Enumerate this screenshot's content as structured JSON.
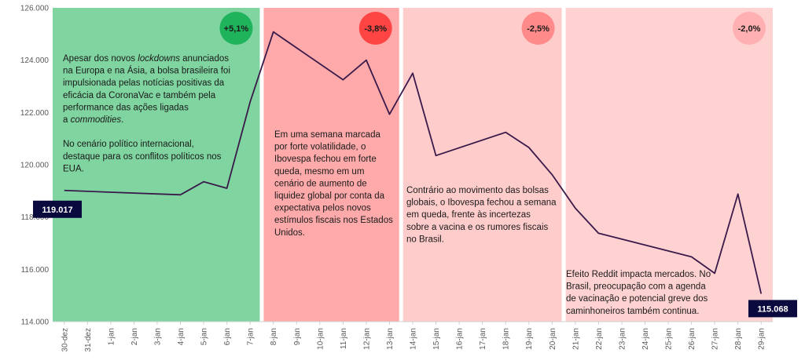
{
  "chart_data": {
    "type": "line",
    "title": "",
    "xlabel": "",
    "ylabel": "",
    "ylim": [
      114000,
      126000
    ],
    "yticks": [
      "114.000",
      "116.000",
      "118.000",
      "120.000",
      "122.000",
      "124.000",
      "126.000"
    ],
    "ytick_values": [
      114000,
      116000,
      118000,
      120000,
      122000,
      124000,
      126000
    ],
    "categories": [
      "30-dez",
      "31-dez",
      "1-jan",
      "2-jan",
      "3-jan",
      "4-jan",
      "5-jan",
      "6-jan",
      "7-jan",
      "8-jan",
      "9-jan",
      "10-jan",
      "11-jan",
      "12-jan",
      "13-jan",
      "14-jan",
      "15-jan",
      "16-jan",
      "17-jan",
      "18-jan",
      "19-jan",
      "20-jan",
      "21-jan",
      "22-jan",
      "23-jan",
      "24-jan",
      "25-jan",
      "26-jan",
      "27-jan",
      "28-jan",
      "29-jan"
    ],
    "series": [
      {
        "name": "Ibovespa",
        "color": "#3a1a4a",
        "points": [
          {
            "x": 0,
            "y": 119017
          },
          {
            "x": 5,
            "y": 118850
          },
          {
            "x": 6,
            "y": 119350
          },
          {
            "x": 7,
            "y": 119100
          },
          {
            "x": 8,
            "y": 122400
          },
          {
            "x": 9,
            "y": 125080
          },
          {
            "x": 12,
            "y": 123250
          },
          {
            "x": 13,
            "y": 124000
          },
          {
            "x": 14,
            "y": 121930
          },
          {
            "x": 15,
            "y": 123500
          },
          {
            "x": 16,
            "y": 120350
          },
          {
            "x": 19,
            "y": 121240
          },
          {
            "x": 20,
            "y": 120660
          },
          {
            "x": 21,
            "y": 119620
          },
          {
            "x": 22,
            "y": 118340
          },
          {
            "x": 23,
            "y": 117380
          },
          {
            "x": 27,
            "y": 116480
          },
          {
            "x": 28,
            "y": 115850
          },
          {
            "x": 29,
            "y": 118880
          },
          {
            "x": 30,
            "y": 115068
          }
        ]
      }
    ],
    "regions": [
      {
        "name": "week-1",
        "x_from": 0,
        "x_to": 8.5,
        "color": "#7fd4a0",
        "badge": "+5,1%",
        "badge_color": "#1fb35c",
        "text": [
          [
            {
              "t": "Apesar dos novos "
            },
            {
              "t": "lockdowns",
              "i": true
            },
            {
              "t": " anunciados"
            }
          ],
          [
            {
              "t": "na Europa e na Ásia, a bolsa brasileira foi"
            }
          ],
          [
            {
              "t": "impulsionada pelas notícias positivas da"
            }
          ],
          [
            {
              "t": "eficácia da CoronaVac e também pela"
            }
          ],
          [
            {
              "t": "performance das ações ligadas"
            }
          ],
          [
            {
              "t": "a "
            },
            {
              "t": "commodities",
              "i": true
            },
            {
              "t": "."
            }
          ],
          [
            {
              "t": ""
            }
          ],
          [
            {
              "t": "No cenário político internacional,"
            }
          ],
          [
            {
              "t": "destaque para os conflitos políticos nos"
            }
          ],
          [
            {
              "t": "EUA."
            }
          ]
        ]
      },
      {
        "name": "week-2",
        "x_from": 8.5,
        "x_to": 14.5,
        "color": "#ffaaaa",
        "badge": "-3,8%",
        "badge_color": "#ff4444",
        "text": [
          [
            {
              "t": "Em uma semana marcada"
            }
          ],
          [
            {
              "t": "por forte volatilidade, o"
            }
          ],
          [
            {
              "t": "Ibovespa fechou em forte"
            }
          ],
          [
            {
              "t": "queda, mesmo em um"
            }
          ],
          [
            {
              "t": "cenário de aumento de"
            }
          ],
          [
            {
              "t": "liquidez global por conta da"
            }
          ],
          [
            {
              "t": "expectativa pelos novos"
            }
          ],
          [
            {
              "t": "estímulos fiscais nos Estados"
            }
          ],
          [
            {
              "t": "Unidos."
            }
          ]
        ]
      },
      {
        "name": "week-3",
        "x_from": 14.5,
        "x_to": 21.5,
        "color": "#ffcccc",
        "badge": "-2,5%",
        "badge_color": "#ff8a8a",
        "text": [
          [
            {
              "t": "Contrário ao movimento das bolsas"
            }
          ],
          [
            {
              "t": "globais, o Ibovespa fechou a semana"
            }
          ],
          [
            {
              "t": "em queda, frente às incertezas"
            }
          ],
          [
            {
              "t": "sobre a vacina e os rumores fiscais"
            }
          ],
          [
            {
              "t": "no Brasil."
            }
          ]
        ]
      },
      {
        "name": "week-4",
        "x_from": 21.5,
        "x_to": 30.0,
        "color": "#ffd2d2",
        "badge": "-2,0%",
        "badge_color": "#ffb0b0",
        "text": [
          [
            {
              "t": "Efeito Reddit impacta mercados. No"
            }
          ],
          [
            {
              "t": "Brasil, preocupação com a agenda"
            }
          ],
          [
            {
              "t": "de vacinação e potencial greve dos"
            }
          ],
          [
            {
              "t": "caminhoneiros também continua."
            }
          ]
        ]
      }
    ],
    "callouts": [
      {
        "name": "start-value",
        "label": "119.017",
        "x": 0,
        "y": 119017
      },
      {
        "name": "end-value",
        "label": "115.068",
        "x": 30,
        "y": 115068
      }
    ]
  }
}
